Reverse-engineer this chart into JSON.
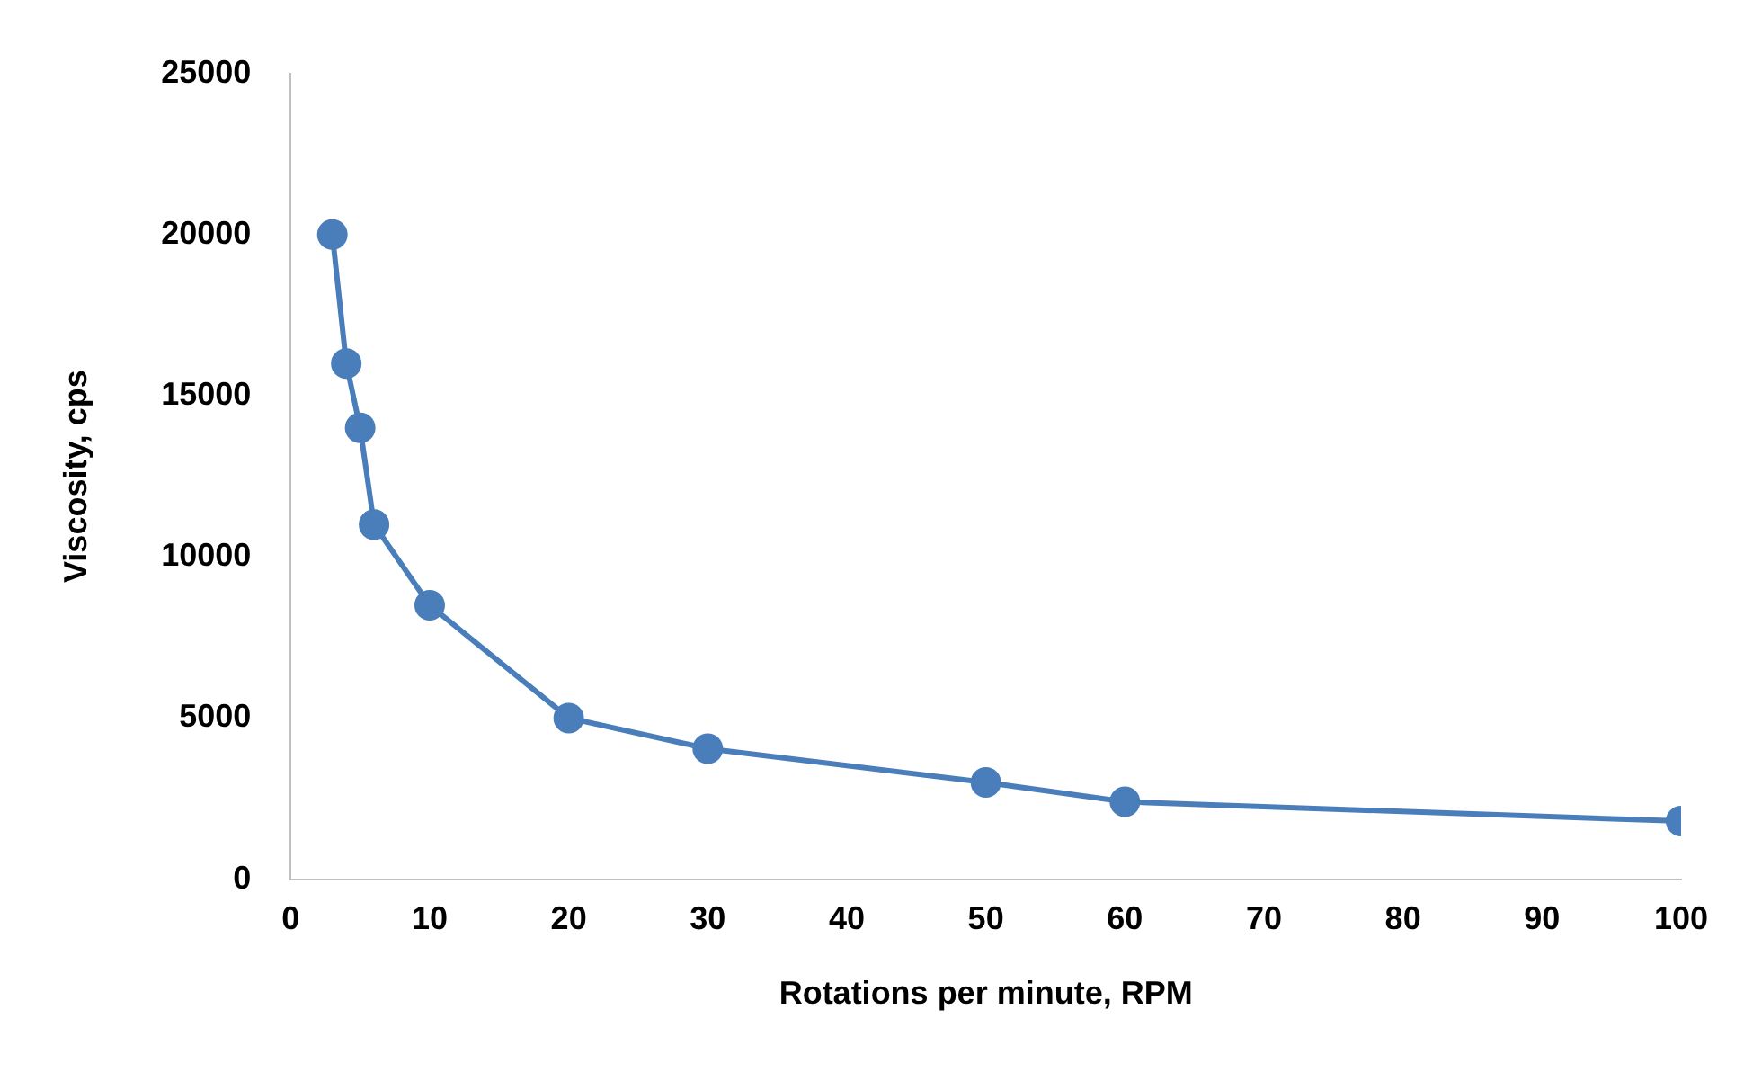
{
  "chart_data": {
    "type": "line",
    "xlabel": "Rotations per minute, RPM",
    "ylabel": "Viscosity, cps",
    "x": [
      3,
      4,
      5,
      6,
      10,
      20,
      30,
      50,
      60,
      100
    ],
    "series": [
      {
        "color": "#4a7ebb",
        "values": [
          20000,
          16000,
          14000,
          11000,
          8500,
          5000,
          4050,
          3000,
          2400,
          1800
        ]
      }
    ],
    "xlim": [
      0,
      100
    ],
    "xticks": [
      0,
      10,
      20,
      30,
      40,
      50,
      60,
      70,
      80,
      90,
      100
    ],
    "ylim": [
      0,
      25000
    ],
    "yticks": [
      0,
      5000,
      10000,
      15000,
      20000,
      25000
    ],
    "grid": false,
    "legend": false,
    "marker": "circle",
    "line_style": "solid"
  }
}
